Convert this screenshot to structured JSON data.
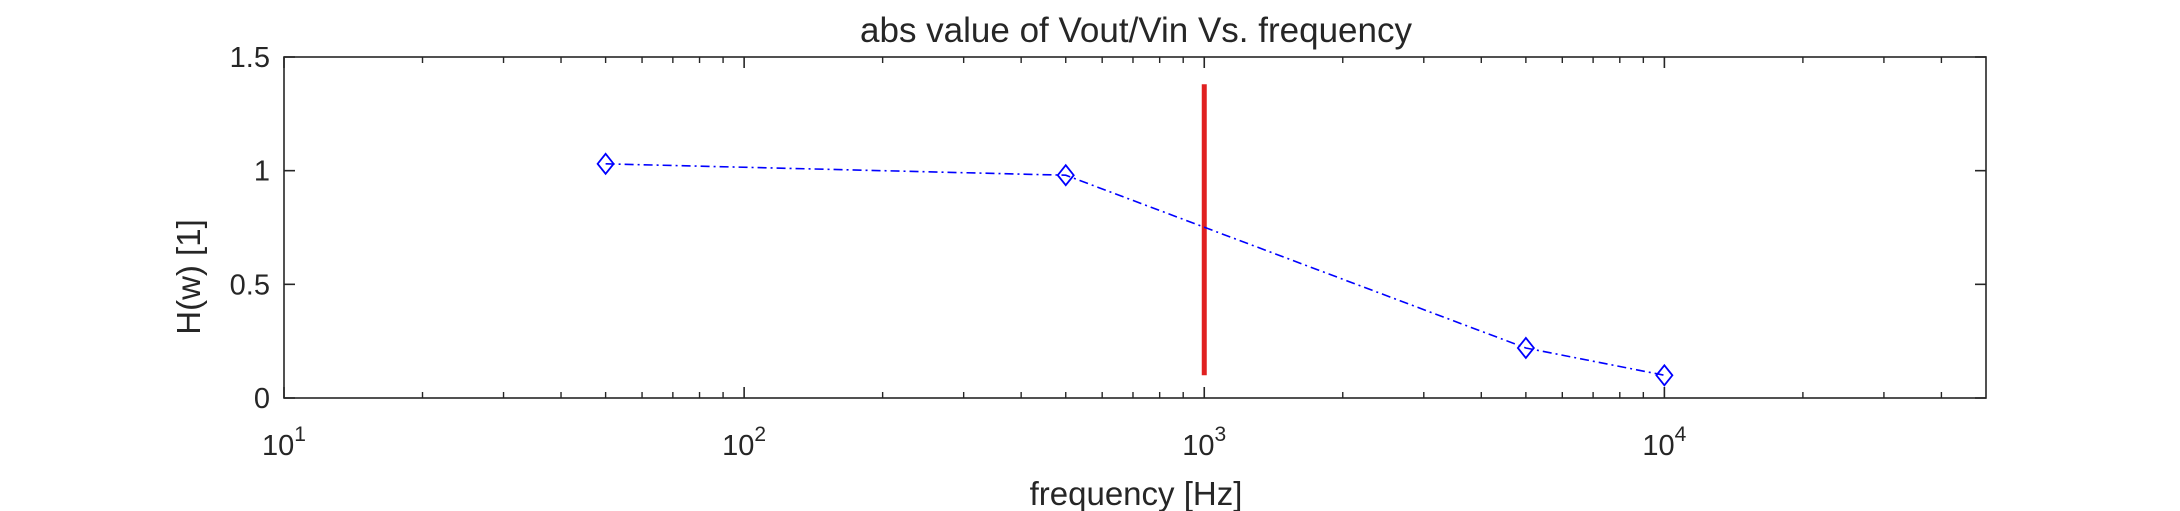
{
  "chart_data": {
    "type": "line",
    "title": "abs value of Vout/Vin Vs. frequency",
    "xlabel": "frequency [Hz]",
    "ylabel": "H(w) [1]",
    "xscale": "log",
    "xlim": [
      10,
      50000
    ],
    "ylim": [
      0,
      1.5
    ],
    "x_ticks": [
      {
        "value": 10,
        "base": "10",
        "exp": "1"
      },
      {
        "value": 100,
        "base": "10",
        "exp": "2"
      },
      {
        "value": 1000,
        "base": "10",
        "exp": "3"
      },
      {
        "value": 10000,
        "base": "10",
        "exp": "4"
      }
    ],
    "y_ticks": [
      {
        "value": 0,
        "label": "0"
      },
      {
        "value": 0.5,
        "label": "0.5"
      },
      {
        "value": 1,
        "label": "1"
      },
      {
        "value": 1.5,
        "label": "1.5"
      }
    ],
    "grid": false,
    "series": [
      {
        "x": [
          50,
          500,
          5000,
          10000
        ],
        "y": [
          1.03,
          0.98,
          0.22,
          0.1
        ],
        "color": "#0000ff",
        "line_style": "dash-dot",
        "marker": "diamond"
      }
    ],
    "annotations": [
      {
        "type": "vertical-line",
        "x": 1000,
        "y_from": 0.1,
        "y_to": 1.38,
        "color": "#e02020"
      }
    ]
  }
}
